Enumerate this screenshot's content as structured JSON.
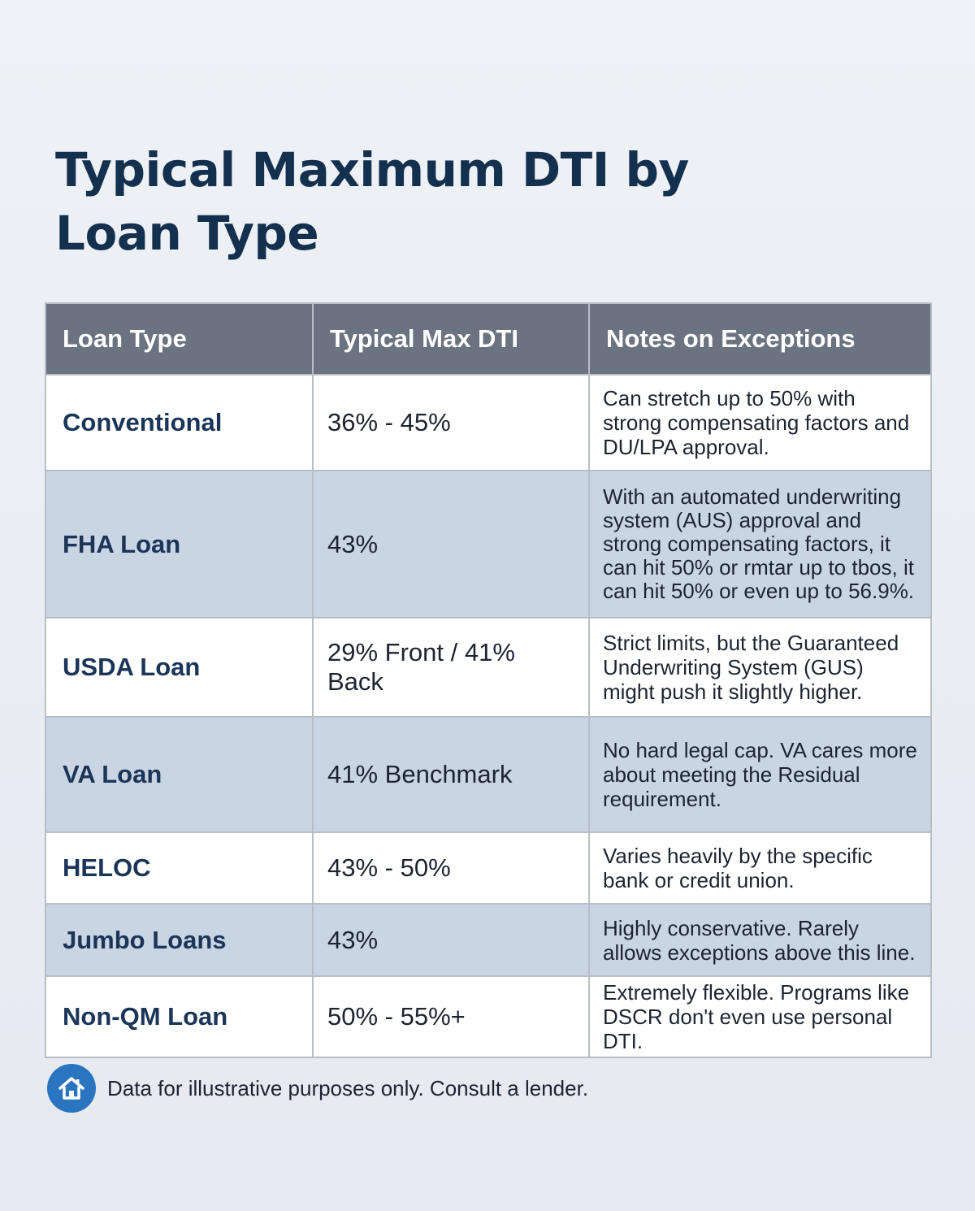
{
  "title": {
    "line1": "Typical Maximum DTI by",
    "line2": "Loan Type"
  },
  "table": {
    "headers": [
      "Loan Type",
      "Typical Max DTI",
      "Notes on Exceptions"
    ],
    "rows": [
      {
        "type": "Conventional",
        "dti": "36% - 45%",
        "notes": "Can stretch up to 50% with strong compensating factors and DU/LPA approval."
      },
      {
        "type": "FHA Loan",
        "dti": "43%",
        "notes": "With an automated underwriting system (AUS) approval and strong compensating factors, it can hit 50% or rmtar up to tbos, it can hit 50% or even up to 56.9%."
      },
      {
        "type": "USDA Loan",
        "dti": "29% Front / 41% Back",
        "notes": "Strict limits, but the Guaranteed Underwriting System (GUS) might push it slightly higher."
      },
      {
        "type": "VA Loan",
        "dti": "41% Benchmark",
        "notes": "No hard legal cap. VA cares more about meeting the Residual requirement."
      },
      {
        "type": "HELOC",
        "dti": "43% - 50%",
        "notes": "Varies heavily by the specific bank or credit union."
      },
      {
        "type": "Jumbo Loans",
        "dti": "43%",
        "notes": "Highly conservative. Rarely allows exceptions above this line."
      },
      {
        "type": "Non-QM Loan",
        "dti": "50% - 55%+",
        "notes": "Extremely flexible. Programs like DSCR don't even use personal DTI."
      }
    ]
  },
  "footer": {
    "icon": "house-icon",
    "text": "Data for illustrative purposes only. Consult a lender."
  },
  "colors": {
    "title": "#14304f",
    "header_bg": "#6b7380",
    "row_alt_bg": "#c9d5e3",
    "loan_type_text": "#1b3559",
    "footer_icon_bg": "#2a74c0"
  }
}
